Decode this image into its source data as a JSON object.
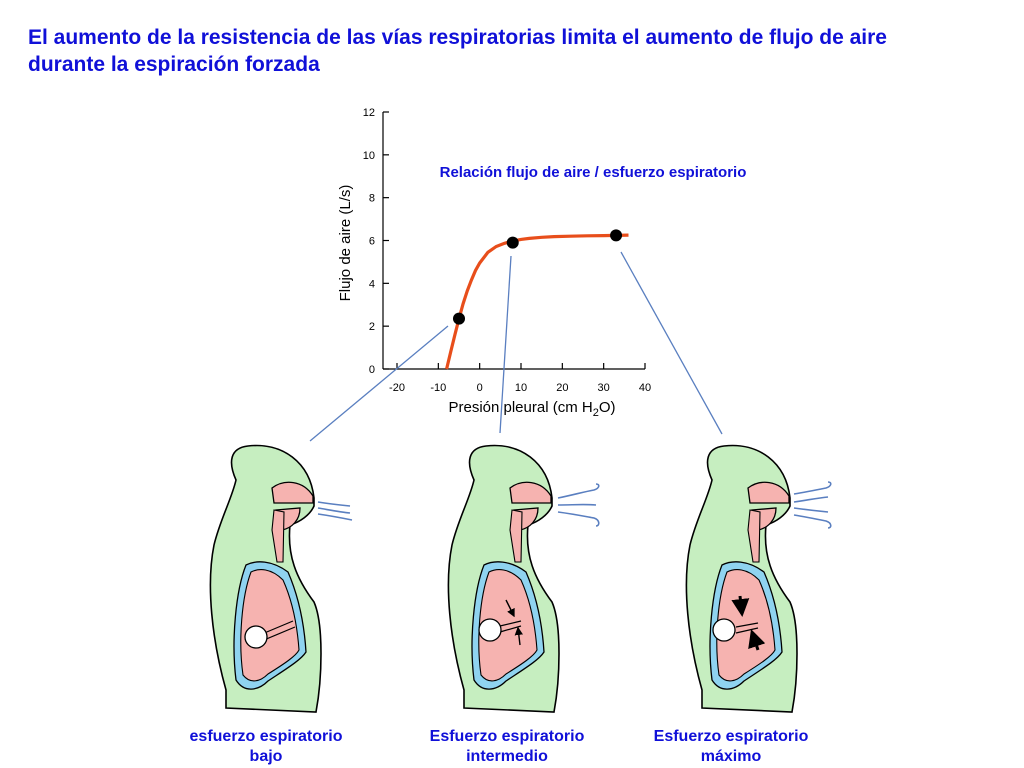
{
  "title": {
    "line1": "El aumento de la resistencia de las vías respiratorias limita el aumento de flujo de aire",
    "line2": "durante la espiración forzada"
  },
  "chart_data": {
    "type": "line",
    "title": "Relación flujo de aire /  esfuerzo espiratorio",
    "xlabel": "Presión pleural (cm H2O)",
    "xlabel_parts": {
      "before": "Presión pleural (cm H",
      "sub": "2",
      "after": "O)"
    },
    "ylabel": "Flujo de aire (L/s)",
    "xlim": [
      -20,
      40
    ],
    "ylim": [
      0,
      12
    ],
    "x_ticks": [
      -20,
      -10,
      0,
      10,
      20,
      30,
      40
    ],
    "y_ticks": [
      0,
      2,
      4,
      6,
      8,
      10,
      12
    ],
    "grid": false,
    "series": [
      {
        "color": "#e84e1b",
        "x": [
          -8,
          -7,
          -6,
          -5,
          -4,
          -3,
          -2,
          -1,
          0,
          2,
          4,
          6,
          8,
          10,
          12,
          15,
          18,
          22,
          26,
          30,
          33,
          36
        ],
        "y": [
          0,
          0.8,
          1.6,
          2.35,
          3.05,
          3.65,
          4.15,
          4.6,
          4.95,
          5.45,
          5.72,
          5.87,
          5.97,
          6.05,
          6.1,
          6.15,
          6.18,
          6.2,
          6.22,
          6.23,
          6.24,
          6.25
        ]
      }
    ],
    "points": [
      {
        "x": -5,
        "y": 2.35
      },
      {
        "x": 8,
        "y": 5.9
      },
      {
        "x": 33,
        "y": 6.24
      }
    ]
  },
  "figures": [
    {
      "caption_line1": "esfuerzo espiratorio",
      "caption_line2": "bajo"
    },
    {
      "caption_line1": "Esfuerzo espiratorio",
      "caption_line2": "intermedio"
    },
    {
      "caption_line1": "Esfuerzo espiratorio",
      "caption_line2": "máximo"
    }
  ],
  "colors": {
    "title": "#1010d8",
    "curve": "#e84e1b",
    "body": "#c6eec0",
    "lung": "#f6b3b0",
    "pleura": "#8fd3f0",
    "connector": "#5a7fc0"
  }
}
